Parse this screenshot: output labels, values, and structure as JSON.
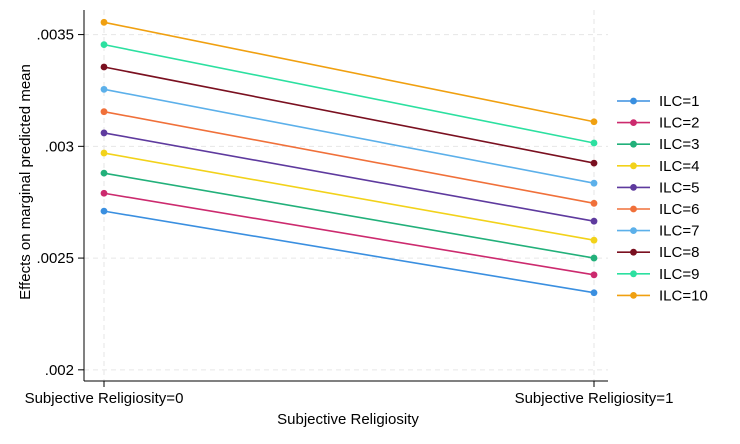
{
  "chart_data": {
    "type": "line",
    "title": "",
    "xlabel": "Subjective Religiosity",
    "ylabel": "Effects on marginal predicted mean",
    "categories": [
      "Subjective Religiosity=0",
      "Subjective Religiosity=1"
    ],
    "ylim": [
      0.00195,
      0.00361
    ],
    "yticks": [
      0.002,
      0.0025,
      0.003,
      0.0035
    ],
    "ytick_labels": [
      ".002",
      ".0025",
      ".003",
      ".0035"
    ],
    "grid": "horizontal dashed",
    "legend_position": "right",
    "series": [
      {
        "name": "ILC=1",
        "color": "#3a8fe0",
        "values": [
          0.00271,
          0.002345
        ]
      },
      {
        "name": "ILC=2",
        "color": "#cc2a6e",
        "values": [
          0.00279,
          0.002425
        ]
      },
      {
        "name": "ILC=3",
        "color": "#22b07a",
        "values": [
          0.00288,
          0.0025
        ]
      },
      {
        "name": "ILC=4",
        "color": "#f2d21a",
        "values": [
          0.00297,
          0.00258
        ]
      },
      {
        "name": "ILC=5",
        "color": "#5e3a9e",
        "values": [
          0.00306,
          0.002665
        ]
      },
      {
        "name": "ILC=6",
        "color": "#f0703a",
        "values": [
          0.003155,
          0.002745
        ]
      },
      {
        "name": "ILC=7",
        "color": "#5cb0ea",
        "values": [
          0.003255,
          0.002835
        ]
      },
      {
        "name": "ILC=8",
        "color": "#7a1020",
        "values": [
          0.003355,
          0.002925
        ]
      },
      {
        "name": "ILC=9",
        "color": "#2ce0a0",
        "values": [
          0.003455,
          0.003015
        ]
      },
      {
        "name": "ILC=10",
        "color": "#f0a010",
        "values": [
          0.003555,
          0.00311
        ]
      }
    ]
  }
}
